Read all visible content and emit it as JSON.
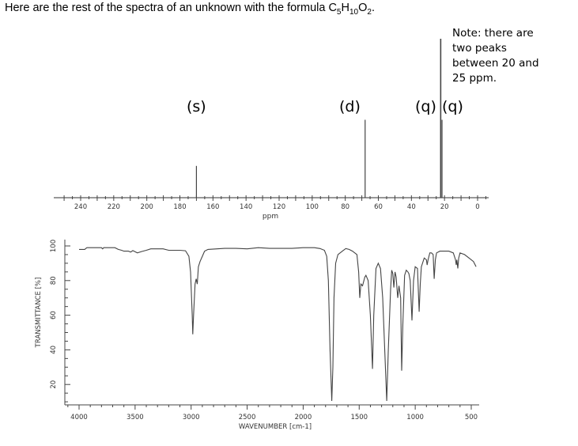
{
  "heading": {
    "prefix": "Here are the rest of the spectra of an unknown with the formula C",
    "c": "5",
    "h_label": "H",
    "h": "10",
    "o_label": "O",
    "o": "2",
    "suffix": "."
  },
  "note": "Note: there are two peaks between 20 and 25 ppm.",
  "multiplicity_labels": [
    "(s)",
    "(d)",
    "(q)",
    "(q)"
  ],
  "chart_data": [
    {
      "type": "stick",
      "xlabel": "ppm",
      "xlim": [
        250,
        -5
      ],
      "xticks": [
        240,
        220,
        200,
        180,
        160,
        140,
        120,
        100,
        80,
        60,
        40,
        20,
        0
      ],
      "peaks": [
        {
          "ppm": 170,
          "intensity": 20,
          "label": "(s)"
        },
        {
          "ppm": 68,
          "intensity": 49,
          "label": "(d)"
        },
        {
          "ppm": 22.3,
          "intensity": 100,
          "label": "(q)"
        },
        {
          "ppm": 21.5,
          "intensity": 49,
          "label": "(q)"
        }
      ],
      "color": "#444444"
    },
    {
      "type": "line",
      "xlabel": "WAVENUMBER [cm-1]",
      "ylabel": "TRANSMITTANCE [%]",
      "xlim": [
        4150,
        420
      ],
      "ylim": [
        5,
        103
      ],
      "xticks": [
        4000,
        3500,
        3000,
        2500,
        2000,
        1500,
        1000,
        500
      ],
      "yticks": [
        100,
        80,
        60,
        40,
        20
      ],
      "color": "#444444",
      "points": [
        [
          4000,
          98
        ],
        [
          3950,
          98
        ],
        [
          3930,
          99
        ],
        [
          3800,
          99
        ],
        [
          3790,
          98.3
        ],
        [
          3780,
          99
        ],
        [
          3680,
          99
        ],
        [
          3650,
          98
        ],
        [
          3620,
          97.5
        ],
        [
          3600,
          97
        ],
        [
          3560,
          97
        ],
        [
          3540,
          96.5
        ],
        [
          3520,
          97.3
        ],
        [
          3480,
          96
        ],
        [
          3440,
          96.8
        ],
        [
          3400,
          97.5
        ],
        [
          3360,
          98.3
        ],
        [
          3250,
          98.3
        ],
        [
          3200,
          97.5
        ],
        [
          3100,
          97.5
        ],
        [
          3050,
          97.2
        ],
        [
          3020,
          94
        ],
        [
          3005,
          85
        ],
        [
          2990,
          60
        ],
        [
          2985,
          49
        ],
        [
          2978,
          60
        ],
        [
          2965,
          78
        ],
        [
          2955,
          81
        ],
        [
          2945,
          78
        ],
        [
          2935,
          88
        ],
        [
          2920,
          91
        ],
        [
          2900,
          94
        ],
        [
          2880,
          97
        ],
        [
          2850,
          98
        ],
        [
          2700,
          98.6
        ],
        [
          2600,
          98.6
        ],
        [
          2500,
          98.3
        ],
        [
          2400,
          99
        ],
        [
          2300,
          98.6
        ],
        [
          2100,
          98.6
        ],
        [
          2000,
          99
        ],
        [
          1900,
          99
        ],
        [
          1850,
          98.5
        ],
        [
          1810,
          97.5
        ],
        [
          1790,
          94
        ],
        [
          1775,
          80
        ],
        [
          1760,
          40
        ],
        [
          1745,
          10.5
        ],
        [
          1735,
          30
        ],
        [
          1725,
          70
        ],
        [
          1710,
          90
        ],
        [
          1690,
          95
        ],
        [
          1650,
          97
        ],
        [
          1620,
          98.5
        ],
        [
          1590,
          98
        ],
        [
          1560,
          97
        ],
        [
          1520,
          95
        ],
        [
          1505,
          85
        ],
        [
          1495,
          70
        ],
        [
          1485,
          78
        ],
        [
          1470,
          77
        ],
        [
          1450,
          82
        ],
        [
          1440,
          83
        ],
        [
          1420,
          80
        ],
        [
          1400,
          60
        ],
        [
          1381,
          29
        ],
        [
          1370,
          60
        ],
        [
          1350,
          87
        ],
        [
          1330,
          90
        ],
        [
          1310,
          87
        ],
        [
          1290,
          70
        ],
        [
          1254,
          10.5
        ],
        [
          1240,
          40
        ],
        [
          1220,
          75
        ],
        [
          1210,
          86
        ],
        [
          1200,
          84
        ],
        [
          1191,
          76
        ],
        [
          1180,
          85
        ],
        [
          1170,
          82
        ],
        [
          1156,
          70
        ],
        [
          1145,
          77
        ],
        [
          1130,
          70
        ],
        [
          1121,
          28
        ],
        [
          1110,
          55
        ],
        [
          1095,
          83
        ],
        [
          1080,
          86
        ],
        [
          1065,
          85
        ],
        [
          1057,
          84
        ],
        [
          1045,
          80
        ],
        [
          1029,
          57
        ],
        [
          1015,
          80
        ],
        [
          1000,
          88
        ],
        [
          980,
          87
        ],
        [
          965,
          62
        ],
        [
          955,
          78
        ],
        [
          945,
          88
        ],
        [
          920,
          93
        ],
        [
          900,
          92
        ],
        [
          894,
          89
        ],
        [
          885,
          92
        ],
        [
          870,
          96
        ],
        [
          855,
          96
        ],
        [
          840,
          95
        ],
        [
          831,
          81
        ],
        [
          820,
          92
        ],
        [
          810,
          96
        ],
        [
          780,
          97
        ],
        [
          700,
          97
        ],
        [
          660,
          96
        ],
        [
          640,
          92
        ],
        [
          634,
          89
        ],
        [
          628,
          92
        ],
        [
          620,
          87
        ],
        [
          612,
          93
        ],
        [
          600,
          96
        ],
        [
          560,
          95
        ],
        [
          520,
          93
        ],
        [
          480,
          91
        ],
        [
          457,
          88
        ]
      ]
    }
  ]
}
